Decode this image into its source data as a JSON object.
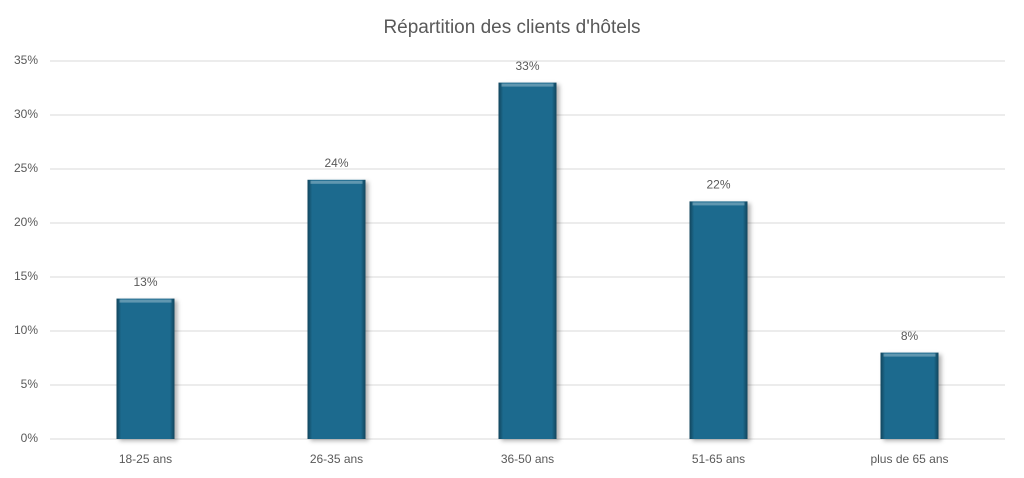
{
  "chart_data": {
    "type": "bar",
    "title": "Répartition des clients d'hôtels",
    "categories": [
      "18-25 ans",
      "26-35 ans",
      "36-50 ans",
      "51-65 ans",
      "plus de 65 ans"
    ],
    "values": [
      13,
      24,
      33,
      22,
      8
    ],
    "value_labels": [
      "13%",
      "24%",
      "33%",
      "22%",
      "8%"
    ],
    "color": "#1f6b8e",
    "ylim": [
      0,
      35
    ],
    "yticks": [
      {
        "value": 0,
        "label": "0%"
      },
      {
        "value": 5,
        "label": "5%"
      },
      {
        "value": 10,
        "label": "10%"
      },
      {
        "value": 15,
        "label": "15%"
      },
      {
        "value": 20,
        "label": "20%"
      },
      {
        "value": 25,
        "label": "25%"
      },
      {
        "value": 30,
        "label": "30%"
      },
      {
        "value": 35,
        "label": "35%"
      }
    ],
    "grid": true
  }
}
